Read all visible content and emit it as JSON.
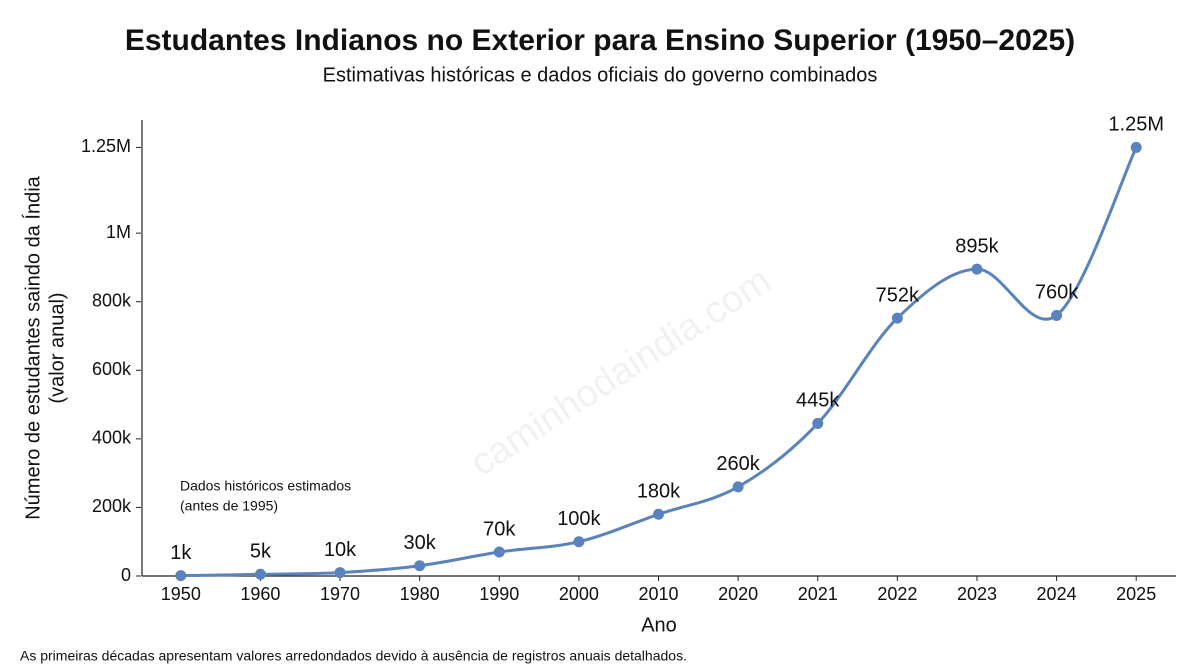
{
  "chart_data": {
    "type": "line",
    "title": "Estudantes Indianos no Exterior para Ensino Superior (1950–2025)",
    "subtitle": "Estimativas históricas e dados oficiais do governo combinados",
    "x_label": "Ano",
    "y_label": [
      "Número de estudantes saindo da Índia",
      "(valor anual)"
    ],
    "categories": [
      "1950",
      "1960",
      "1970",
      "1980",
      "1990",
      "2000",
      "2010",
      "2020",
      "2021",
      "2022",
      "2023",
      "2024",
      "2025"
    ],
    "values": [
      1000,
      5000,
      10000,
      30000,
      70000,
      100000,
      180000,
      260000,
      445000,
      752000,
      895000,
      760000,
      1250000
    ],
    "value_labels": [
      "1k",
      "5k",
      "10k",
      "30k",
      "70k",
      "100k",
      "180k",
      "260k",
      "445k",
      "752k",
      "895k",
      "760k",
      "1.25M"
    ],
    "color": "#5a83bd",
    "ylim": [
      0,
      1330000
    ],
    "yticks": [
      0,
      {
        "value": 200000,
        "label": "200k"
      },
      {
        "value": 400000,
        "label": "400k"
      },
      {
        "value": 600000,
        "label": "600k"
      },
      {
        "value": 800000,
        "label": "800k"
      },
      {
        "value": 1000000,
        "label": "1M"
      },
      {
        "value": 1250000,
        "label": "1.25M"
      }
    ],
    "grid": false,
    "annotation": [
      "Dados históricos estimados",
      "(antes de 1995)"
    ],
    "watermark": "caminhodaindia.com",
    "footnote": "As primeiras décadas apresentam valores arredondados devido à ausência de registros anuais detalhados."
  }
}
